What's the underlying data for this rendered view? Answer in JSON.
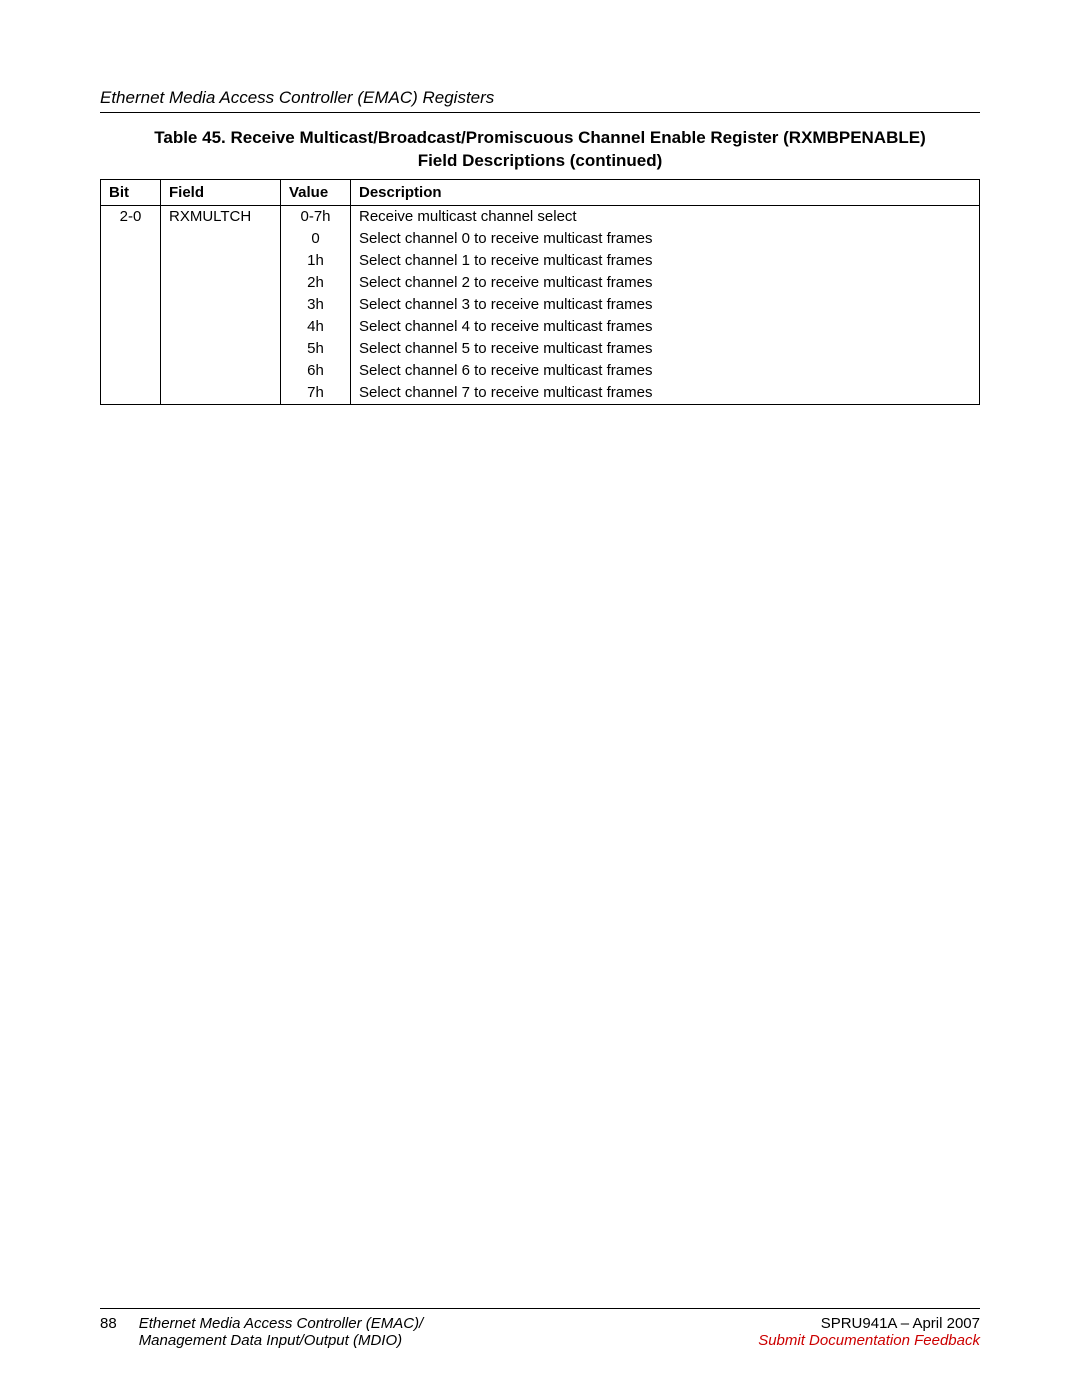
{
  "section_header": "Ethernet Media Access Controller (EMAC) Registers",
  "table": {
    "title_line1": "Table 45. Receive Multicast/Broadcast/Promiscuous Channel Enable Register (RXMBPENABLE)",
    "title_line2": "Field Descriptions (continued)",
    "columns": {
      "bit": "Bit",
      "field": "Field",
      "value": "Value",
      "description": "Description"
    },
    "rows": [
      {
        "bit": "2-0",
        "field": "RXMULTCH",
        "value": "0-7h",
        "description": "Receive multicast channel select"
      },
      {
        "bit": "",
        "field": "",
        "value": "0",
        "description": "Select channel 0 to receive multicast frames"
      },
      {
        "bit": "",
        "field": "",
        "value": "1h",
        "description": "Select channel 1 to receive multicast frames"
      },
      {
        "bit": "",
        "field": "",
        "value": "2h",
        "description": "Select channel 2 to receive multicast frames"
      },
      {
        "bit": "",
        "field": "",
        "value": "3h",
        "description": "Select channel 3 to receive multicast frames"
      },
      {
        "bit": "",
        "field": "",
        "value": "4h",
        "description": "Select channel 4 to receive multicast frames"
      },
      {
        "bit": "",
        "field": "",
        "value": "5h",
        "description": "Select channel 5 to receive multicast frames"
      },
      {
        "bit": "",
        "field": "",
        "value": "6h",
        "description": "Select channel 6 to receive multicast frames"
      },
      {
        "bit": "",
        "field": "",
        "value": "7h",
        "description": "Select channel 7 to receive multicast frames"
      }
    ]
  },
  "footer": {
    "page_number": "88",
    "doc_title_line1": "Ethernet Media Access Controller (EMAC)/",
    "doc_title_line2": "Management Data Input/Output (MDIO)",
    "doc_id": "SPRU941A – April 2007",
    "feedback_link": "Submit Documentation Feedback"
  }
}
